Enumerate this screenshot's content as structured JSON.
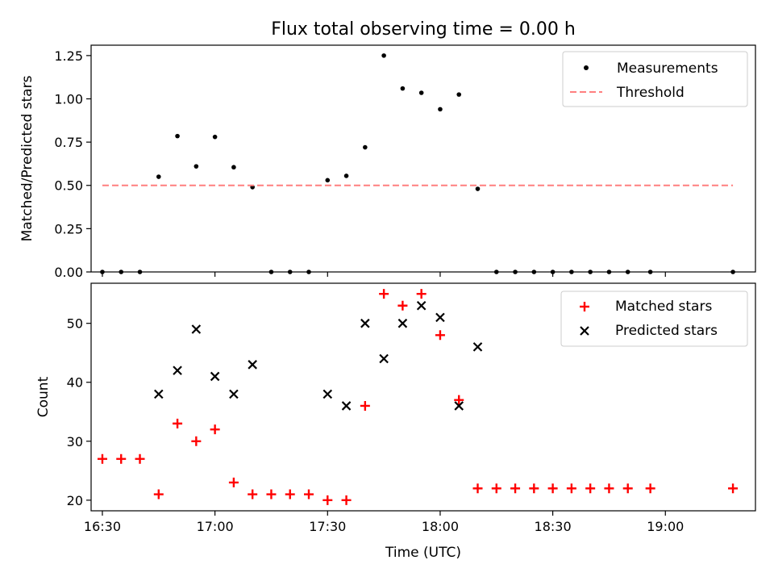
{
  "figure": {
    "title": "Flux total observing time = 0.00 h",
    "xlabel": "Time (UTC)",
    "xticks": [
      "16:30",
      "17:00",
      "17:30",
      "18:00",
      "18:30",
      "19:00"
    ],
    "tick_minutes": [
      990,
      1020,
      1050,
      1080,
      1110,
      1140
    ],
    "xlim_minutes": [
      987,
      1164
    ]
  },
  "colors": {
    "measurement": "#000000",
    "threshold": "#ff7f7f",
    "matched": "#ff0000",
    "predicted": "#000000"
  },
  "chart_data": [
    {
      "type": "scatter",
      "ylabel": "Matched/Predicted stars",
      "ylim": [
        0,
        1.31
      ],
      "yticks": [
        "0.00",
        "0.25",
        "0.50",
        "0.75",
        "1.00",
        "1.25"
      ],
      "ytick_values": [
        0,
        0.25,
        0.5,
        0.75,
        1.0,
        1.25
      ],
      "legend_position": "top-right",
      "series": [
        {
          "name": "Measurements",
          "style": "point",
          "points": [
            {
              "x": "16:30",
              "y": 0.0
            },
            {
              "x": "16:35",
              "y": 0.0
            },
            {
              "x": "16:40",
              "y": 0.0
            },
            {
              "x": "16:45",
              "y": 0.55
            },
            {
              "x": "16:50",
              "y": 0.785
            },
            {
              "x": "16:55",
              "y": 0.61
            },
            {
              "x": "17:00",
              "y": 0.78
            },
            {
              "x": "17:05",
              "y": 0.605
            },
            {
              "x": "17:10",
              "y": 0.49
            },
            {
              "x": "17:15",
              "y": 0.0
            },
            {
              "x": "17:20",
              "y": 0.0
            },
            {
              "x": "17:25",
              "y": 0.0
            },
            {
              "x": "17:30",
              "y": 0.53
            },
            {
              "x": "17:35",
              "y": 0.555
            },
            {
              "x": "17:40",
              "y": 0.72
            },
            {
              "x": "17:45",
              "y": 1.25
            },
            {
              "x": "17:50",
              "y": 1.06
            },
            {
              "x": "17:55",
              "y": 1.035
            },
            {
              "x": "18:00",
              "y": 0.94
            },
            {
              "x": "18:05",
              "y": 1.025
            },
            {
              "x": "18:10",
              "y": 0.48
            },
            {
              "x": "18:15",
              "y": 0.0
            },
            {
              "x": "18:20",
              "y": 0.0
            },
            {
              "x": "18:25",
              "y": 0.0
            },
            {
              "x": "18:30",
              "y": 0.0
            },
            {
              "x": "18:35",
              "y": 0.0
            },
            {
              "x": "18:40",
              "y": 0.0
            },
            {
              "x": "18:45",
              "y": 0.0
            },
            {
              "x": "18:50",
              "y": 0.0
            },
            {
              "x": "18:56",
              "y": 0.0
            },
            {
              "x": "19:18",
              "y": 0.0
            }
          ]
        },
        {
          "name": "Threshold",
          "style": "dashed-line",
          "points": [
            {
              "x": "16:30",
              "y": 0.5
            },
            {
              "x": "19:18",
              "y": 0.5
            }
          ]
        }
      ]
    },
    {
      "type": "scatter",
      "ylabel": "Count",
      "ylim": [
        18.2,
        56.8
      ],
      "yticks": [
        "20",
        "30",
        "40",
        "50"
      ],
      "ytick_values": [
        20,
        30,
        40,
        50
      ],
      "legend_position": "top-right",
      "series": [
        {
          "name": "Matched stars",
          "style": "plus",
          "points": [
            {
              "x": "16:30",
              "y": 27
            },
            {
              "x": "16:35",
              "y": 27
            },
            {
              "x": "16:40",
              "y": 27
            },
            {
              "x": "16:45",
              "y": 21
            },
            {
              "x": "16:50",
              "y": 33
            },
            {
              "x": "16:55",
              "y": 30
            },
            {
              "x": "17:00",
              "y": 32
            },
            {
              "x": "17:05",
              "y": 23
            },
            {
              "x": "17:10",
              "y": 21
            },
            {
              "x": "17:15",
              "y": 21
            },
            {
              "x": "17:20",
              "y": 21
            },
            {
              "x": "17:25",
              "y": 21
            },
            {
              "x": "17:30",
              "y": 20
            },
            {
              "x": "17:35",
              "y": 20
            },
            {
              "x": "17:40",
              "y": 36
            },
            {
              "x": "17:45",
              "y": 55
            },
            {
              "x": "17:50",
              "y": 53
            },
            {
              "x": "17:55",
              "y": 55
            },
            {
              "x": "18:00",
              "y": 48
            },
            {
              "x": "18:05",
              "y": 37
            },
            {
              "x": "18:10",
              "y": 22
            },
            {
              "x": "18:15",
              "y": 22
            },
            {
              "x": "18:20",
              "y": 22
            },
            {
              "x": "18:25",
              "y": 22
            },
            {
              "x": "18:30",
              "y": 22
            },
            {
              "x": "18:35",
              "y": 22
            },
            {
              "x": "18:40",
              "y": 22
            },
            {
              "x": "18:45",
              "y": 22
            },
            {
              "x": "18:50",
              "y": 22
            },
            {
              "x": "18:56",
              "y": 22
            },
            {
              "x": "19:18",
              "y": 22
            }
          ]
        },
        {
          "name": "Predicted stars",
          "style": "cross",
          "points": [
            {
              "x": "16:45",
              "y": 38
            },
            {
              "x": "16:50",
              "y": 42
            },
            {
              "x": "16:55",
              "y": 49
            },
            {
              "x": "17:00",
              "y": 41
            },
            {
              "x": "17:05",
              "y": 38
            },
            {
              "x": "17:10",
              "y": 43
            },
            {
              "x": "17:30",
              "y": 38
            },
            {
              "x": "17:35",
              "y": 36
            },
            {
              "x": "17:40",
              "y": 50
            },
            {
              "x": "17:45",
              "y": 44
            },
            {
              "x": "17:50",
              "y": 50
            },
            {
              "x": "17:55",
              "y": 53
            },
            {
              "x": "18:00",
              "y": 51
            },
            {
              "x": "18:05",
              "y": 36
            },
            {
              "x": "18:10",
              "y": 46
            }
          ]
        }
      ]
    }
  ]
}
